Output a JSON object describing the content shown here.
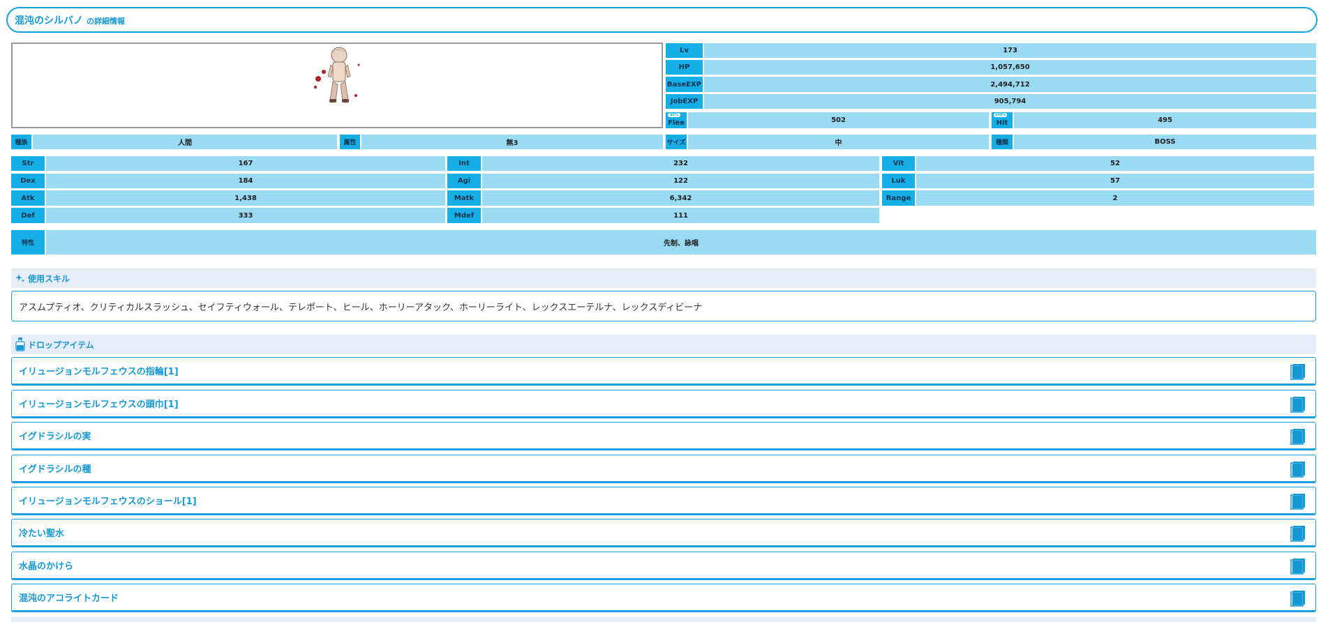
{
  "title": {
    "name": "混沌のシルバノ",
    "suffix": "の詳細情報"
  },
  "stats_top": {
    "lv": {
      "label": "Lv",
      "value": "173"
    },
    "hp": {
      "label": "HP",
      "value": "1,057,650"
    },
    "base_exp": {
      "label": "BaseEXP",
      "value": "2,494,712"
    },
    "job_exp": {
      "label": "JobEXP",
      "value": "905,794"
    },
    "flee": {
      "label": "Flee",
      "badge": "95%",
      "value": "502"
    },
    "hit": {
      "label": "Hit",
      "badge": "100%",
      "value": "495"
    }
  },
  "attributes": {
    "race": {
      "label": "種族",
      "value": "人間"
    },
    "element": {
      "label": "属性",
      "value": "無3"
    },
    "size": {
      "label": "サイズ",
      "value": "中"
    },
    "type": {
      "label": "種類",
      "value": "BOSS"
    }
  },
  "stats": {
    "str": {
      "label": "Str",
      "value": "167"
    },
    "int": {
      "label": "Int",
      "value": "232"
    },
    "vit": {
      "label": "Vit",
      "value": "52"
    },
    "dex": {
      "label": "Dex",
      "value": "184"
    },
    "agi": {
      "label": "Agi",
      "value": "122"
    },
    "luk": {
      "label": "Luk",
      "value": "57"
    },
    "atk": {
      "label": "Atk",
      "value": "1,438"
    },
    "matk": {
      "label": "Matk",
      "value": "6,342"
    },
    "range": {
      "label": "Range",
      "value": "2"
    },
    "def": {
      "label": "Def",
      "value": "333"
    },
    "mdef": {
      "label": "Mdef",
      "value": "111"
    }
  },
  "traits": {
    "label": "特性",
    "value": "先制、詠唱"
  },
  "skills": {
    "heading": "使用スキル",
    "text": "アスムプティオ、クリティカルスラッシュ、セイフティウォール、テレポート、ヒール、ホーリーアタック、ホーリーライト、レックスエーテルナ、レックスディビーナ"
  },
  "drops": {
    "heading": "ドロップアイテム",
    "items": [
      "イリュージョンモルフェウスの指輪[1]",
      "イリュージョンモルフェウスの頭巾[1]",
      "イグドラシルの実",
      "イグドラシルの種",
      "イリュージョンモルフェウスのショール[1]",
      "冷たい聖水",
      "水晶のかけら",
      "混沌のアコライトカード"
    ]
  },
  "icons": {
    "skills": "sparkle-icon",
    "drops": "potion-bottle-icon",
    "item_detail": "book-icon"
  },
  "colors": {
    "accent": "#1aa0dc",
    "label_bg": "#16aee6",
    "value_bg": "#9adaf2",
    "section_bg": "#e6ecf8"
  }
}
